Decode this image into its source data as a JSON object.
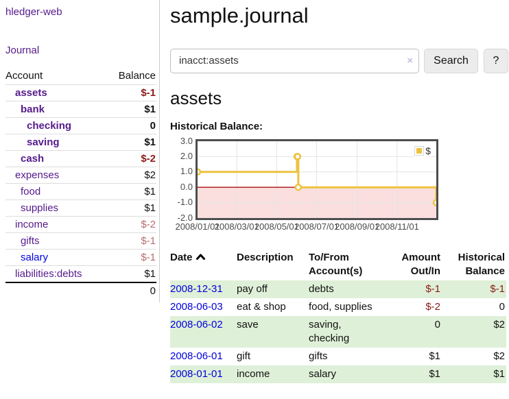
{
  "colors": {
    "link_visited": "#551a8b",
    "link_blue": "#0000dd",
    "negative_strong": "#8b1a1a",
    "negative_muted": "#b76c6f",
    "row_shaded": "#dff0d8",
    "chart_line": "#edc240",
    "chart_negative_fill": "#fbdfdf",
    "chart_zero_line": "#aa1111"
  },
  "brand": {
    "label": "hledger-web"
  },
  "nav": {
    "journal_label": "Journal"
  },
  "sidebar": {
    "header": {
      "account": "Account",
      "balance": "Balance"
    },
    "accounts": [
      {
        "name": "assets",
        "balance": "$-1"
      },
      {
        "name": "bank",
        "balance": "$1"
      },
      {
        "name": "checking",
        "balance": "0"
      },
      {
        "name": "saving",
        "balance": "$1"
      },
      {
        "name": "cash",
        "balance": "$-2"
      },
      {
        "name": "expenses",
        "balance": "$2"
      },
      {
        "name": "food",
        "balance": "$1"
      },
      {
        "name": "supplies",
        "balance": "$1"
      },
      {
        "name": "income",
        "balance": "$-2"
      },
      {
        "name": "gifts",
        "balance": "$-1"
      },
      {
        "name": "salary",
        "balance": "$-1"
      },
      {
        "name": "liabilities:debts",
        "balance": "$1"
      }
    ],
    "total": "0"
  },
  "main": {
    "title": "sample.journal",
    "search": {
      "value": "inacct:assets",
      "clear_icon": "×",
      "search_button": "Search",
      "help_button": "?"
    },
    "account_heading": "assets",
    "chart_title": "Historical Balance:"
  },
  "chart_data": {
    "type": "line",
    "step": true,
    "title": "Historical Balance:",
    "legend": {
      "label": "$",
      "position": "top-right"
    },
    "x": [
      "2008-01-01",
      "2008-06-01",
      "2008-06-02",
      "2008-06-03",
      "2008-12-31"
    ],
    "series": [
      {
        "name": "$",
        "color": "#edc240",
        "values": [
          1,
          2,
          2,
          0,
          -1
        ]
      }
    ],
    "x_tick_labels": [
      "2008/01/01",
      "2008/03/01",
      "2008/05/01",
      "2008/07/01",
      "2008/09/01",
      "2008/11/01"
    ],
    "y_tick_labels": [
      "3.0",
      "2.0",
      "1.0",
      "0.0",
      "-1.0",
      "-2.0"
    ],
    "ylim": [
      -2,
      3
    ],
    "grid": true,
    "negative_region_fill": "#fbdfdf",
    "zero_line_color": "#aa1111"
  },
  "register": {
    "columns": {
      "date": "Date",
      "description": "Description",
      "accounts_line1": "To/From",
      "accounts_line2": "Account(s)",
      "amount_line1": "Amount",
      "amount_line2": "Out/In",
      "balance_line1": "Historical",
      "balance_line2": "Balance"
    },
    "rows": [
      {
        "date": "2008-12-31",
        "description": "pay off",
        "accounts": "debts",
        "amount": "$-1",
        "balance": "$-1"
      },
      {
        "date": "2008-06-03",
        "description": "eat & shop",
        "accounts": "food, supplies",
        "amount": "$-2",
        "balance": "0"
      },
      {
        "date": "2008-06-02",
        "description": "save",
        "accounts": "saving, checking",
        "amount": "0",
        "balance": "$2"
      },
      {
        "date": "2008-06-01",
        "description": "gift",
        "accounts": "gifts",
        "amount": "$1",
        "balance": "$2"
      },
      {
        "date": "2008-01-01",
        "description": "income",
        "accounts": "salary",
        "amount": "$1",
        "balance": "$1"
      }
    ]
  }
}
